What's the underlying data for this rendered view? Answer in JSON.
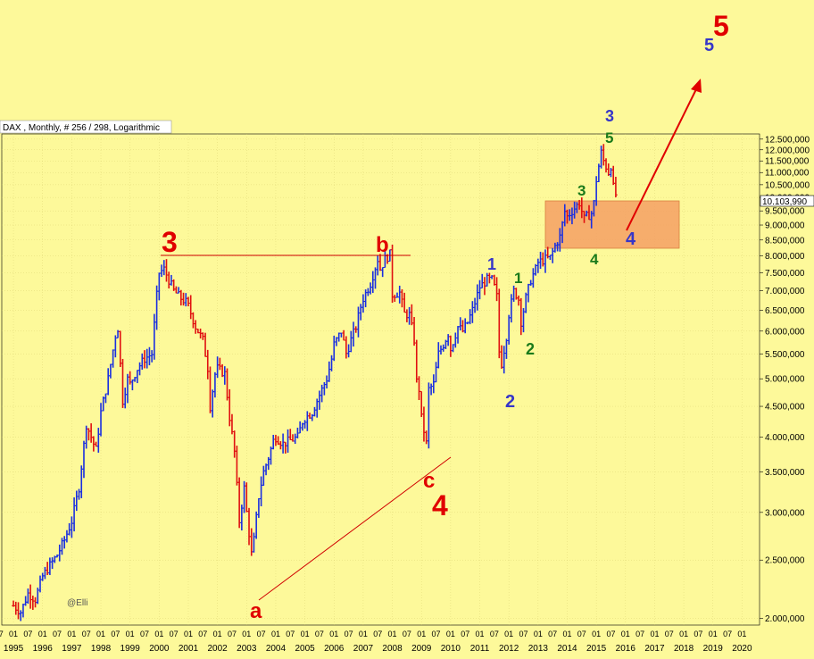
{
  "chart_data": {
    "type": "ohlc",
    "title": "DAX , Monthly, # 256 / 298, Logarithmic",
    "scale": "log",
    "credit": "@Elli",
    "last_value_label": "10.103,990",
    "ylim": [
      1950,
      12750
    ],
    "y_ticks": [
      {
        "value": 2000,
        "label": "2.000,000"
      },
      {
        "value": 2500,
        "label": "2.500,000"
      },
      {
        "value": 3000,
        "label": "3.000,000"
      },
      {
        "value": 3500,
        "label": "3.500,000"
      },
      {
        "value": 4000,
        "label": "4.000,000"
      },
      {
        "value": 4500,
        "label": "4.500,000"
      },
      {
        "value": 5000,
        "label": "5.000,000"
      },
      {
        "value": 5500,
        "label": "5.500,000"
      },
      {
        "value": 6000,
        "label": "6.000,000"
      },
      {
        "value": 6500,
        "label": "6.500,000"
      },
      {
        "value": 7000,
        "label": "7.000,000"
      },
      {
        "value": 7500,
        "label": "7.500,000"
      },
      {
        "value": 8000,
        "label": "8.000,000"
      },
      {
        "value": 8500,
        "label": "8.500,000"
      },
      {
        "value": 9000,
        "label": "9.000,000"
      },
      {
        "value": 9500,
        "label": "9.500,000"
      },
      {
        "value": 10000,
        "label": "10.000,000"
      },
      {
        "value": 10500,
        "label": "10.500,000"
      },
      {
        "value": 11000,
        "label": "11.000,000"
      },
      {
        "value": 11500,
        "label": "11.500,000"
      },
      {
        "value": 12000,
        "label": "12.000,000"
      },
      {
        "value": 12500,
        "label": "12.500,000"
      }
    ],
    "x_years": [
      "1995",
      "1996",
      "1997",
      "1998",
      "1999",
      "2000",
      "2001",
      "2002",
      "2003",
      "2004",
      "2005",
      "2006",
      "2007",
      "2008",
      "2009",
      "2010",
      "2011",
      "2012",
      "2013",
      "2014",
      "2015",
      "2016",
      "2017",
      "2018",
      "2019",
      "2020"
    ],
    "x_month_labels": [
      "07",
      "01"
    ],
    "xlim": [
      1994.6,
      2020.6
    ],
    "series_closes": [
      [
        1995.0,
        2100
      ],
      [
        1995.25,
        2050
      ],
      [
        1995.5,
        2200
      ],
      [
        1995.75,
        2150
      ],
      [
        1996.0,
        2350
      ],
      [
        1996.25,
        2450
      ],
      [
        1996.5,
        2550
      ],
      [
        1996.75,
        2700
      ],
      [
        1997.0,
        2900
      ],
      [
        1997.25,
        3300
      ],
      [
        1997.5,
        4200
      ],
      [
        1997.67,
        4000
      ],
      [
        1997.83,
        3800
      ],
      [
        1998.0,
        4400
      ],
      [
        1998.25,
        5000
      ],
      [
        1998.5,
        5900
      ],
      [
        1998.58,
        6100
      ],
      [
        1998.75,
        4600
      ],
      [
        1998.92,
        5000
      ],
      [
        1999.0,
        4900
      ],
      [
        1999.25,
        5200
      ],
      [
        1999.5,
        5400
      ],
      [
        1999.75,
        5500
      ],
      [
        1999.92,
        6900
      ],
      [
        2000.0,
        7500
      ],
      [
        2000.17,
        7600
      ],
      [
        2000.33,
        7300
      ],
      [
        2000.5,
        7000
      ],
      [
        2000.75,
        6800
      ],
      [
        2000.92,
        6700
      ],
      [
        2001.0,
        6600
      ],
      [
        2001.25,
        6100
      ],
      [
        2001.5,
        5800
      ],
      [
        2001.67,
        5200
      ],
      [
        2001.75,
        4500
      ],
      [
        2001.92,
        5100
      ],
      [
        2002.0,
        5200
      ],
      [
        2002.25,
        5100
      ],
      [
        2002.42,
        4300
      ],
      [
        2002.58,
        3800
      ],
      [
        2002.75,
        2900
      ],
      [
        2002.92,
        3300
      ],
      [
        2003.0,
        3000
      ],
      [
        2003.17,
        2550
      ],
      [
        2003.25,
        2700
      ],
      [
        2003.42,
        3200
      ],
      [
        2003.58,
        3500
      ],
      [
        2003.75,
        3700
      ],
      [
        2003.92,
        3950
      ],
      [
        2004.0,
        4000
      ],
      [
        2004.25,
        3900
      ],
      [
        2004.5,
        3950
      ],
      [
        2004.75,
        4000
      ],
      [
        2004.92,
        4250
      ],
      [
        2005.0,
        4300
      ],
      [
        2005.25,
        4400
      ],
      [
        2005.5,
        4700
      ],
      [
        2005.75,
        5000
      ],
      [
        2005.92,
        5400
      ],
      [
        2006.0,
        5700
      ],
      [
        2006.25,
        6000
      ],
      [
        2006.42,
        5500
      ],
      [
        2006.58,
        5800
      ],
      [
        2006.75,
        6100
      ],
      [
        2006.92,
        6600
      ],
      [
        2007.0,
        6800
      ],
      [
        2007.25,
        7200
      ],
      [
        2007.5,
        7900
      ],
      [
        2007.58,
        7600
      ],
      [
        2007.75,
        7900
      ],
      [
        2007.92,
        8050
      ],
      [
        2008.0,
        6900
      ],
      [
        2008.25,
        6950
      ],
      [
        2008.42,
        6400
      ],
      [
        2008.58,
        6400
      ],
      [
        2008.75,
        5800
      ],
      [
        2008.83,
        4950
      ],
      [
        2008.92,
        4800
      ],
      [
        2009.0,
        4300
      ],
      [
        2009.17,
        3900
      ],
      [
        2009.25,
        4800
      ],
      [
        2009.42,
        4900
      ],
      [
        2009.58,
        5500
      ],
      [
        2009.75,
        5700
      ],
      [
        2009.92,
        5950
      ],
      [
        2010.0,
        5600
      ],
      [
        2010.25,
        6100
      ],
      [
        2010.42,
        6000
      ],
      [
        2010.58,
        6200
      ],
      [
        2010.75,
        6500
      ],
      [
        2010.92,
        6900
      ],
      [
        2011.0,
        7100
      ],
      [
        2011.25,
        7300
      ],
      [
        2011.42,
        7300
      ],
      [
        2011.58,
        6900
      ],
      [
        2011.67,
        5500
      ],
      [
        2011.75,
        5300
      ],
      [
        2011.92,
        5900
      ],
      [
        2012.0,
        6400
      ],
      [
        2012.17,
        7000
      ],
      [
        2012.33,
        6800
      ],
      [
        2012.42,
        6200
      ],
      [
        2012.58,
        6800
      ],
      [
        2012.75,
        7300
      ],
      [
        2012.92,
        7600
      ],
      [
        2013.0,
        7800
      ],
      [
        2013.25,
        7900
      ],
      [
        2013.42,
        7950
      ],
      [
        2013.58,
        8300
      ],
      [
        2013.75,
        8600
      ],
      [
        2013.92,
        9500
      ],
      [
        2014.0,
        9300
      ],
      [
        2014.25,
        9600
      ],
      [
        2014.42,
        9800
      ],
      [
        2014.58,
        9200
      ],
      [
        2014.67,
        9300
      ],
      [
        2014.83,
        9400
      ],
      [
        2014.92,
        9800
      ],
      [
        2015.0,
        10700
      ],
      [
        2015.17,
        11900
      ],
      [
        2015.25,
        11500
      ],
      [
        2015.42,
        11000
      ],
      [
        2015.5,
        11300
      ],
      [
        2015.58,
        10400
      ],
      [
        2015.67,
        10100
      ]
    ]
  },
  "annotations": {
    "big_3": "3",
    "big_4": "4",
    "big_5": "5",
    "a": "a",
    "b": "b",
    "c": "c",
    "blue_1": "1",
    "blue_2": "2",
    "blue_3": "3",
    "blue_4": "4",
    "blue_5": "5",
    "green_1": "1",
    "green_2": "2",
    "green_3": "3",
    "green_4": "4",
    "green_5": "5"
  },
  "colors": {
    "background": "#fdf99a",
    "up_bar": "#1a2fe0",
    "down_bar": "#e01010",
    "box_fill": "#f4a064",
    "wave_red": "#e00000",
    "wave_blue": "#3636c8",
    "wave_green": "#1a7a1a"
  }
}
